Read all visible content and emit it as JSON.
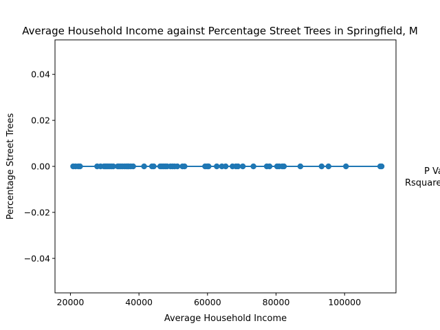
{
  "chart_data": {
    "type": "scatter",
    "title": "Average Household Income against Percentage Street Trees in Springfield, M",
    "xlabel": "Average Household Income",
    "ylabel": "Percentage Street Trees",
    "xlim": [
      15500,
      115000
    ],
    "ylim": [
      -0.055,
      0.055
    ],
    "xticks": [
      20000,
      40000,
      60000,
      80000,
      100000
    ],
    "yticks": [
      -0.04,
      -0.02,
      0.0,
      0.02,
      0.04
    ],
    "xtick_labels": [
      "20000",
      "40000",
      "60000",
      "80000",
      "100000"
    ],
    "ytick_labels": [
      "−0.04",
      "−0.02",
      "0.00",
      "0.02",
      "0.04"
    ],
    "grid": false,
    "color": "#1f77b4",
    "series": [
      {
        "x": [
          20800,
          21500,
          22300,
          22800,
          27800,
          28800,
          29800,
          30200,
          30600,
          31000,
          31500,
          32000,
          32500,
          33800,
          34200,
          34700,
          35200,
          35800,
          36300,
          36700,
          37000,
          37600,
          38300,
          41500,
          43800,
          44300,
          46200,
          46700,
          47200,
          47700,
          48200,
          49200,
          49800,
          50400,
          51200,
          52700,
          53300,
          59300,
          59900,
          60300,
          62700,
          64200,
          65300,
          67300,
          68300,
          68900,
          70300,
          73400,
          77300,
          78100,
          80300,
          80900,
          81800,
          82300,
          87100,
          93300,
          95300,
          100400,
          110400,
          110800
        ],
        "y": [
          0,
          0,
          0,
          0,
          0,
          0,
          0,
          0,
          0,
          0,
          0,
          0,
          0,
          0,
          0,
          0,
          0,
          0,
          0,
          0,
          0,
          0,
          0,
          0,
          0,
          0,
          0,
          0,
          0,
          0,
          0,
          0,
          0,
          0,
          0,
          0,
          0,
          0,
          0,
          0,
          0,
          0,
          0,
          0,
          0,
          0,
          0,
          0,
          0,
          0,
          0,
          0,
          0,
          0,
          0,
          0,
          0,
          0,
          0,
          0
        ]
      }
    ],
    "fit_line": {
      "x": [
        20800,
        110800
      ],
      "y": [
        0,
        0
      ]
    },
    "annotation": {
      "line1": "P Va",
      "line2": "Rsquare"
    }
  }
}
